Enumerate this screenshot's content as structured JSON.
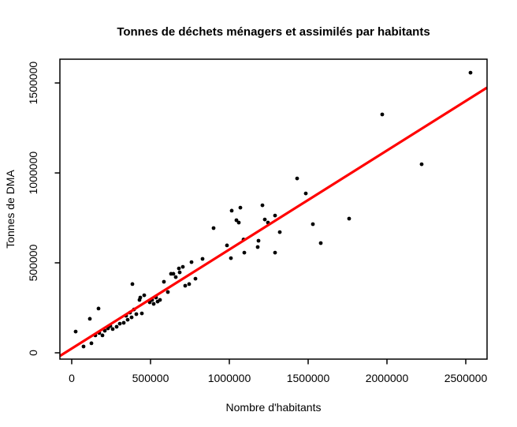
{
  "chart_data": {
    "type": "scatter",
    "title": "Tonnes de déchets ménagers et assimilés par habitants",
    "xlabel": "Nombre d'habitants",
    "ylabel": "Tonnes de DMA",
    "xlim": [
      -75000,
      2635000
    ],
    "ylim": [
      -35000,
      1632000
    ],
    "x_tick_values": [
      0,
      500000,
      1000000,
      1500000,
      2000000,
      2500000
    ],
    "x_tick_labels": [
      "0",
      "500000",
      "1000000",
      "1500000",
      "2000000",
      "2500000"
    ],
    "y_tick_values": [
      0,
      500000,
      1000000,
      1500000
    ],
    "y_tick_labels": [
      "0",
      "500000",
      "1000000",
      "1500000"
    ],
    "grid": false,
    "legend_position": "none",
    "point_color": "#000000",
    "point_radius": 2.4,
    "regression_line": {
      "color": "#FF0000",
      "width": 3.2,
      "x1": -75000,
      "y1": -17500,
      "x2": 2635000,
      "y2": 1474000
    },
    "points": [
      [
        2530000,
        1557000
      ],
      [
        1970000,
        1325000
      ],
      [
        2220000,
        1048000
      ],
      [
        1760000,
        746000
      ],
      [
        1430000,
        969000
      ],
      [
        1485000,
        886000
      ],
      [
        1210000,
        820000
      ],
      [
        1225000,
        741000
      ],
      [
        1245000,
        724000
      ],
      [
        1320000,
        671000
      ],
      [
        1530000,
        715000
      ],
      [
        1580000,
        610000
      ],
      [
        900000,
        693000
      ],
      [
        1015000,
        790000
      ],
      [
        1070000,
        807000
      ],
      [
        1045000,
        737000
      ],
      [
        1060000,
        724000
      ],
      [
        985000,
        597000
      ],
      [
        1010000,
        526000
      ],
      [
        1090000,
        630000
      ],
      [
        1095000,
        557000
      ],
      [
        1180000,
        588000
      ],
      [
        1185000,
        623000
      ],
      [
        1290000,
        763000
      ],
      [
        1290000,
        557000
      ],
      [
        535000,
        307000
      ],
      [
        545000,
        285000
      ],
      [
        560000,
        294000
      ],
      [
        585000,
        395000
      ],
      [
        610000,
        338000
      ],
      [
        630000,
        439000
      ],
      [
        645000,
        439000
      ],
      [
        660000,
        421000
      ],
      [
        680000,
        469000
      ],
      [
        685000,
        447000
      ],
      [
        705000,
        478000
      ],
      [
        720000,
        373000
      ],
      [
        745000,
        382000
      ],
      [
        760000,
        504000
      ],
      [
        785000,
        412000
      ],
      [
        830000,
        522000
      ],
      [
        385000,
        382000
      ],
      [
        25000,
        118000
      ],
      [
        75000,
        35000
      ],
      [
        115000,
        189000
      ],
      [
        125000,
        53000
      ],
      [
        150000,
        97000
      ],
      [
        170000,
        246000
      ],
      [
        175000,
        110000
      ],
      [
        195000,
        97000
      ],
      [
        210000,
        123000
      ],
      [
        230000,
        136000
      ],
      [
        245000,
        149000
      ],
      [
        260000,
        132000
      ],
      [
        285000,
        145000
      ],
      [
        305000,
        162000
      ],
      [
        330000,
        167000
      ],
      [
        345000,
        206000
      ],
      [
        355000,
        184000
      ],
      [
        370000,
        224000
      ],
      [
        380000,
        197000
      ],
      [
        395000,
        241000
      ],
      [
        410000,
        215000
      ],
      [
        430000,
        294000
      ],
      [
        435000,
        307000
      ],
      [
        445000,
        219000
      ],
      [
        460000,
        320000
      ],
      [
        495000,
        281000
      ],
      [
        510000,
        294000
      ],
      [
        520000,
        272000
      ]
    ]
  }
}
